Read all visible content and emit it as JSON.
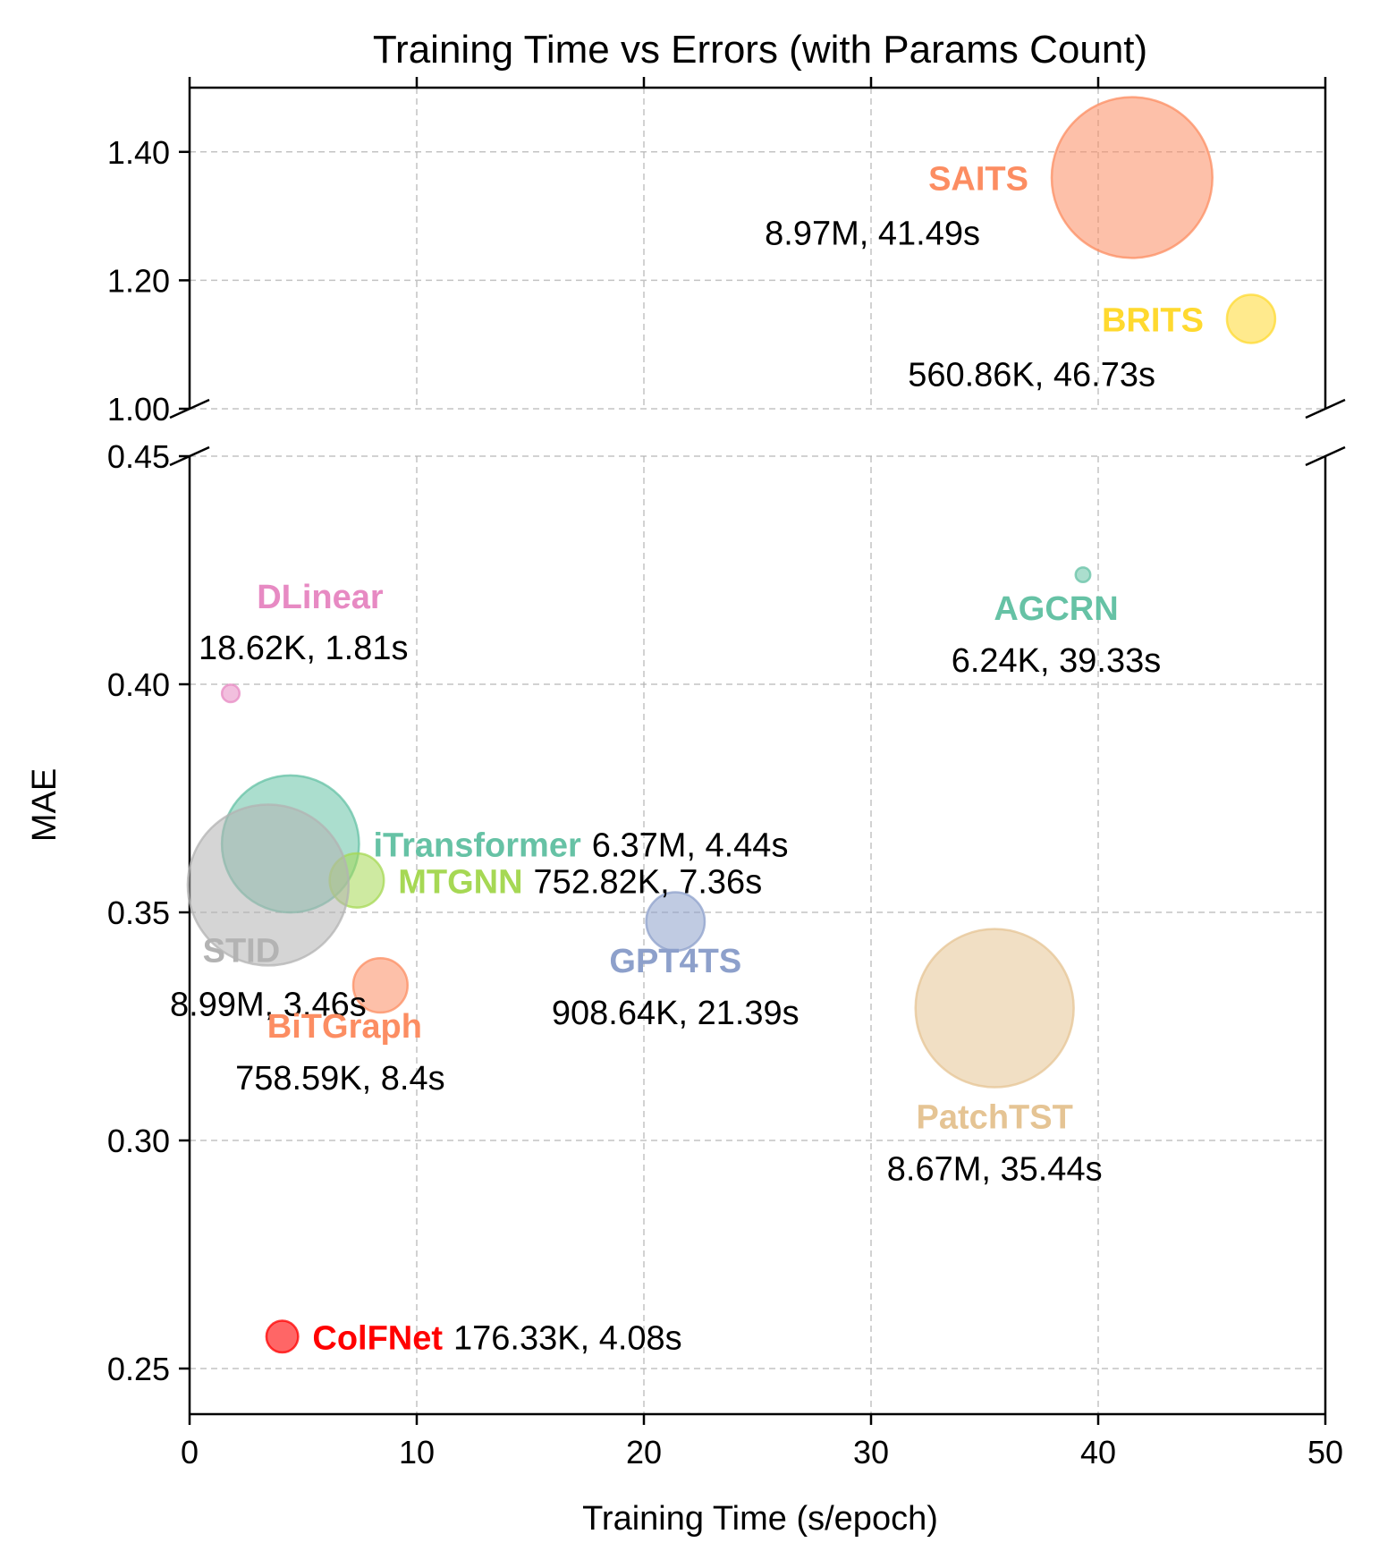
{
  "chart_data": {
    "type": "scatter",
    "title": "Training Time vs Errors (with Params Count)",
    "xlabel": "Training Time (s/epoch)",
    "ylabel": "MAE",
    "xlim": [
      0,
      50
    ],
    "x_ticks": [
      0,
      10,
      20,
      30,
      40,
      50
    ],
    "x_tick_labels": [
      "0",
      "10",
      "20",
      "30",
      "40",
      "50"
    ],
    "broken_y_axis": true,
    "upper_ylim": [
      1.0,
      1.5
    ],
    "upper_y_ticks": [
      1.0,
      1.2,
      1.4
    ],
    "upper_y_tick_labels": [
      "1.00",
      "1.20",
      "1.40"
    ],
    "lower_ylim": [
      0.24,
      0.45
    ],
    "lower_y_ticks": [
      0.25,
      0.3,
      0.35,
      0.4,
      0.45
    ],
    "lower_y_tick_labels": [
      "0.25",
      "0.30",
      "0.35",
      "0.40",
      "0.45"
    ],
    "grid": true,
    "bubble_size": "parameter count",
    "points": [
      {
        "name": "SAITS",
        "stats": "8.97M, 41.49s",
        "x": 41.49,
        "y": 1.36,
        "params_m": 8.97,
        "color": "#fc8d62",
        "label_pos": "left"
      },
      {
        "name": "BRITS",
        "stats": "560.86K, 46.73s",
        "x": 46.73,
        "y": 1.14,
        "params_m": 0.56086,
        "color": "#ffd92f",
        "label_pos": "left"
      },
      {
        "name": "AGCRN",
        "stats": "6.24K, 39.33s",
        "x": 39.33,
        "y": 0.424,
        "params_m": 0.00624,
        "color": "#66c2a5",
        "label_pos": "below"
      },
      {
        "name": "DLinear",
        "stats": "18.62K, 1.81s",
        "x": 1.81,
        "y": 0.398,
        "params_m": 0.01862,
        "color": "#e78ac3",
        "label_pos": "above"
      },
      {
        "name": "iTransformer",
        "stats": "6.37M, 4.44s",
        "x": 4.44,
        "y": 0.365,
        "params_m": 6.37,
        "color": "#66c2a5",
        "label_pos": "right"
      },
      {
        "name": "MTGNN",
        "stats": "752.82K, 7.36s",
        "x": 7.36,
        "y": 0.357,
        "params_m": 0.75282,
        "color": "#a6d854",
        "label_pos": "right"
      },
      {
        "name": "STID",
        "stats": "8.99M, 3.46s",
        "x": 3.46,
        "y": 0.356,
        "params_m": 8.99,
        "color": "#b3b3b3",
        "label_pos": "below"
      },
      {
        "name": "BiTGraph",
        "stats": "758.59K, 8.4s",
        "x": 8.4,
        "y": 0.334,
        "params_m": 0.75859,
        "color": "#fc8d62",
        "label_pos": "below"
      },
      {
        "name": "GPT4TS",
        "stats": "908.64K, 21.39s",
        "x": 21.39,
        "y": 0.348,
        "params_m": 0.90864,
        "color": "#8da0cb",
        "label_pos": "below"
      },
      {
        "name": "PatchTST",
        "stats": "8.67M, 35.44s",
        "x": 35.44,
        "y": 0.329,
        "params_m": 8.67,
        "color": "#e5c494",
        "label_pos": "below"
      },
      {
        "name": "ColFNet",
        "stats": "176.33K, 4.08s",
        "x": 4.08,
        "y": 0.257,
        "params_m": 0.17633,
        "color": "#ff0000",
        "label_pos": "right"
      }
    ]
  }
}
